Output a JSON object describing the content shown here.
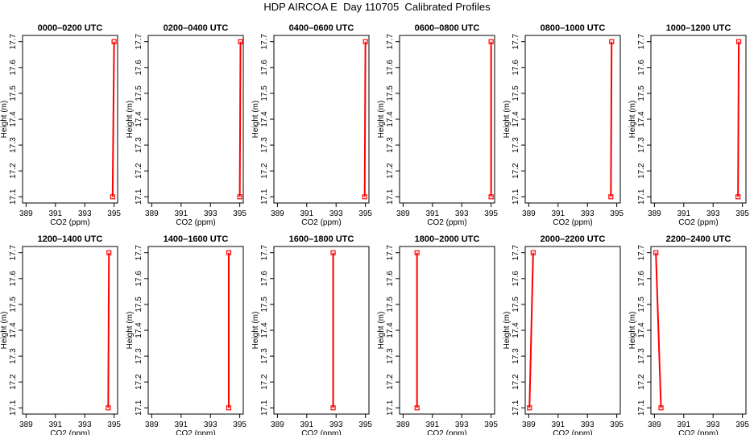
{
  "page": {
    "title": "HDP AIRCOA E  Day 110705  Calibrated Profiles"
  },
  "style": {
    "series_color": "#ff0000",
    "axis_color": "#000000"
  },
  "chart_data": [
    {
      "type": "line",
      "title": "0000–0200 UTC",
      "xlabel": "CO2 (ppm)",
      "ylabel": "Height (m)",
      "xlim": [
        389,
        395
      ],
      "ylim": [
        17.1,
        17.7
      ],
      "xticks": [
        "389",
        "391",
        "393",
        "395"
      ],
      "yticks": [
        "17.1",
        "17.2",
        "17.3",
        "17.4",
        "17.5",
        "17.6",
        "17.7"
      ],
      "series": [
        {
          "x": [
            394.9,
            395.0
          ],
          "y": [
            17.1,
            17.7
          ]
        }
      ]
    },
    {
      "type": "line",
      "title": "0200–0400 UTC",
      "xlabel": "CO2 (ppm)",
      "ylabel": "Height (m)",
      "xlim": [
        389,
        395
      ],
      "ylim": [
        17.1,
        17.7
      ],
      "xticks": [
        "389",
        "391",
        "393",
        "395"
      ],
      "yticks": [
        "17.1",
        "17.2",
        "17.3",
        "17.4",
        "17.5",
        "17.6",
        "17.7"
      ],
      "series": [
        {
          "x": [
            395.0,
            395.05
          ],
          "y": [
            17.1,
            17.7
          ]
        }
      ]
    },
    {
      "type": "line",
      "title": "0400–0600 UTC",
      "xlabel": "CO2 (ppm)",
      "ylabel": "Height (m)",
      "xlim": [
        389,
        395
      ],
      "ylim": [
        17.1,
        17.7
      ],
      "xticks": [
        "389",
        "391",
        "393",
        "395"
      ],
      "yticks": [
        "17.1",
        "17.2",
        "17.3",
        "17.4",
        "17.5",
        "17.6",
        "17.7"
      ],
      "series": [
        {
          "x": [
            394.95,
            395.0
          ],
          "y": [
            17.1,
            17.7
          ]
        }
      ]
    },
    {
      "type": "line",
      "title": "0600–0800 UTC",
      "xlabel": "CO2 (ppm)",
      "ylabel": "Height (m)",
      "xlim": [
        389,
        395
      ],
      "ylim": [
        17.1,
        17.7
      ],
      "xticks": [
        "389",
        "391",
        "393",
        "395"
      ],
      "yticks": [
        "17.1",
        "17.2",
        "17.3",
        "17.4",
        "17.5",
        "17.6",
        "17.7"
      ],
      "series": [
        {
          "x": [
            395.0,
            395.0
          ],
          "y": [
            17.1,
            17.7
          ]
        }
      ]
    },
    {
      "type": "line",
      "title": "0800–1000 UTC",
      "xlabel": "CO2 (ppm)",
      "ylabel": "Height (m)",
      "xlim": [
        389,
        395
      ],
      "ylim": [
        17.1,
        17.7
      ],
      "xticks": [
        "389",
        "391",
        "393",
        "395"
      ],
      "yticks": [
        "17.1",
        "17.2",
        "17.3",
        "17.4",
        "17.5",
        "17.6",
        "17.7"
      ],
      "series": [
        {
          "x": [
            394.6,
            394.65
          ],
          "y": [
            17.1,
            17.7
          ]
        }
      ]
    },
    {
      "type": "line",
      "title": "1000–1200 UTC",
      "xlabel": "CO2 (ppm)",
      "ylabel": "Height (m)",
      "xlim": [
        389,
        395
      ],
      "ylim": [
        17.1,
        17.7
      ],
      "xticks": [
        "389",
        "391",
        "393",
        "395"
      ],
      "yticks": [
        "17.1",
        "17.2",
        "17.3",
        "17.4",
        "17.5",
        "17.6",
        "17.7"
      ],
      "series": [
        {
          "x": [
            394.7,
            394.75
          ],
          "y": [
            17.1,
            17.7
          ]
        }
      ]
    },
    {
      "type": "line",
      "title": "1200–1400 UTC",
      "xlabel": "CO2 (ppm)",
      "ylabel": "Height (m)",
      "xlim": [
        389,
        395
      ],
      "ylim": [
        17.1,
        17.7
      ],
      "xticks": [
        "389",
        "391",
        "393",
        "395"
      ],
      "yticks": [
        "17.1",
        "17.2",
        "17.3",
        "17.4",
        "17.5",
        "17.6",
        "17.7"
      ],
      "series": [
        {
          "x": [
            394.6,
            394.65
          ],
          "y": [
            17.1,
            17.7
          ]
        }
      ]
    },
    {
      "type": "line",
      "title": "1400–1600 UTC",
      "xlabel": "CO2 (ppm)",
      "ylabel": "Height (m)",
      "xlim": [
        389,
        395
      ],
      "ylim": [
        17.1,
        17.7
      ],
      "xticks": [
        "389",
        "391",
        "393",
        "395"
      ],
      "yticks": [
        "17.1",
        "17.2",
        "17.3",
        "17.4",
        "17.5",
        "17.6",
        "17.7"
      ],
      "series": [
        {
          "x": [
            394.25,
            394.25
          ],
          "y": [
            17.1,
            17.7
          ]
        }
      ]
    },
    {
      "type": "line",
      "title": "1600–1800 UTC",
      "xlabel": "CO2 (ppm)",
      "ylabel": "Height (m)",
      "xlim": [
        389,
        395
      ],
      "ylim": [
        17.1,
        17.7
      ],
      "xticks": [
        "389",
        "391",
        "393",
        "395"
      ],
      "yticks": [
        "17.1",
        "17.2",
        "17.3",
        "17.4",
        "17.5",
        "17.6",
        "17.7"
      ],
      "series": [
        {
          "x": [
            392.8,
            392.8
          ],
          "y": [
            17.1,
            17.7
          ]
        }
      ]
    },
    {
      "type": "line",
      "title": "1800–2000 UTC",
      "xlabel": "CO2 (ppm)",
      "ylabel": "Height (m)",
      "xlim": [
        389,
        395
      ],
      "ylim": [
        17.1,
        17.7
      ],
      "xticks": [
        "389",
        "391",
        "393",
        "395"
      ],
      "yticks": [
        "17.1",
        "17.2",
        "17.3",
        "17.4",
        "17.5",
        "17.6",
        "17.7"
      ],
      "series": [
        {
          "x": [
            389.95,
            389.95
          ],
          "y": [
            17.1,
            17.7
          ]
        }
      ]
    },
    {
      "type": "line",
      "title": "2000–2200 UTC",
      "xlabel": "CO2 (ppm)",
      "ylabel": "Height (m)",
      "xlim": [
        389,
        395
      ],
      "ylim": [
        17.1,
        17.7
      ],
      "xticks": [
        "389",
        "391",
        "393",
        "395"
      ],
      "yticks": [
        "17.1",
        "17.2",
        "17.3",
        "17.4",
        "17.5",
        "17.6",
        "17.7"
      ],
      "series": [
        {
          "x": [
            389.05,
            389.3
          ],
          "y": [
            17.1,
            17.7
          ]
        }
      ]
    },
    {
      "type": "line",
      "title": "2200–2400 UTC",
      "xlabel": "CO2 (ppm)",
      "ylabel": "Height (m)",
      "xlim": [
        389,
        395
      ],
      "ylim": [
        17.1,
        17.7
      ],
      "xticks": [
        "389",
        "391",
        "393",
        "395"
      ],
      "yticks": [
        "17.1",
        "17.2",
        "17.3",
        "17.4",
        "17.5",
        "17.6",
        "17.7"
      ],
      "series": [
        {
          "x": [
            389.45,
            389.1
          ],
          "y": [
            17.1,
            17.7
          ]
        }
      ]
    }
  ]
}
